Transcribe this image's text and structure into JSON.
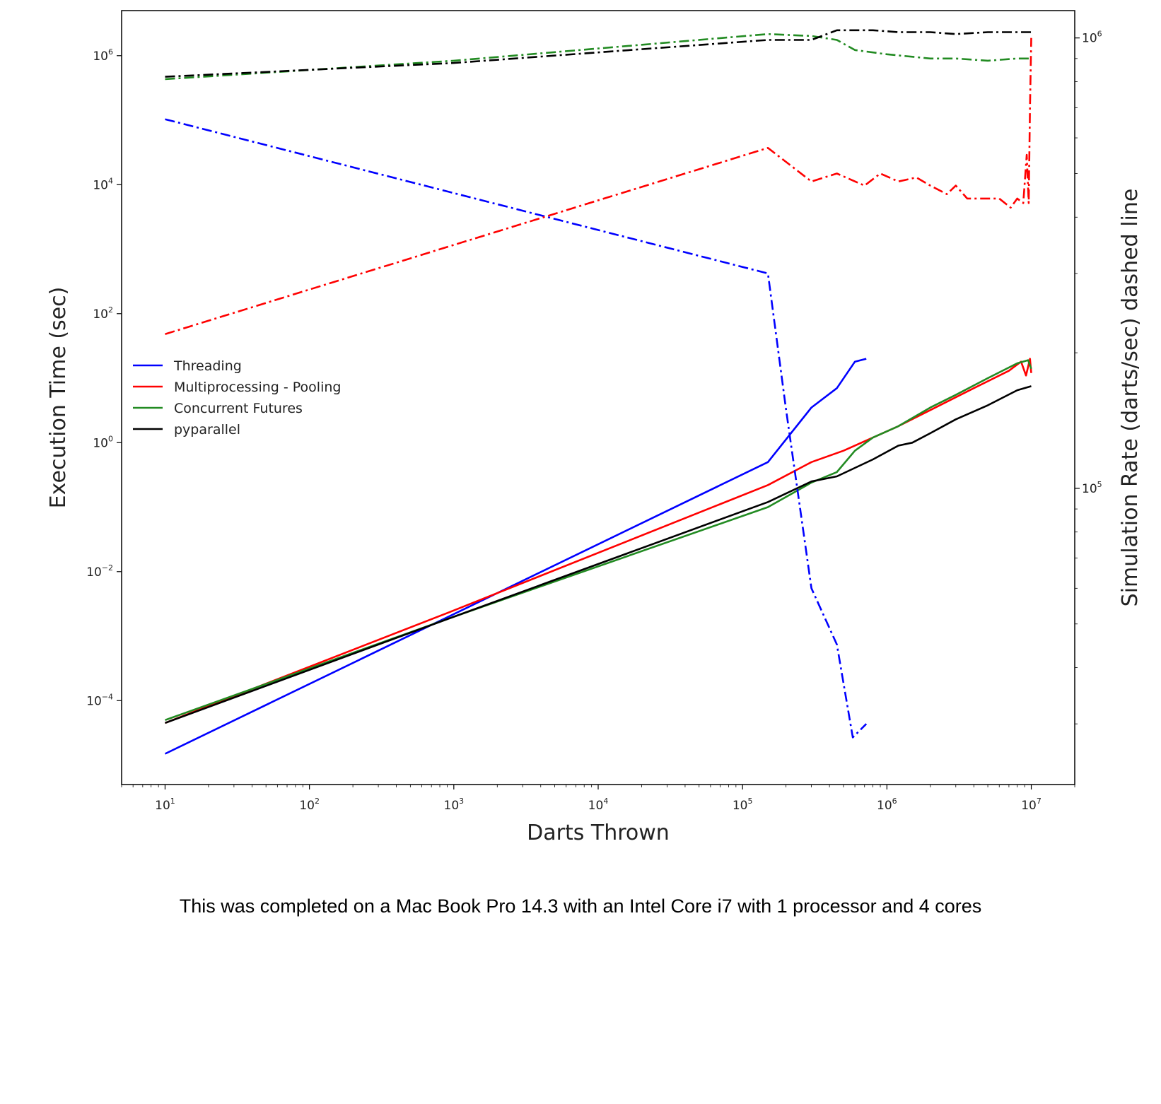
{
  "chart_data": {
    "type": "line",
    "xlabel": "Darts Thrown",
    "ylabel_left": "Execution Time (sec)",
    "ylabel_right": "Simulation Rate (darts/sec) dashed line",
    "x_scale": "log",
    "y_left_scale": "log",
    "y_right_scale": "log",
    "xlim": [
      5,
      20000000
    ],
    "ylim_left": [
      5e-06,
      5000000
    ],
    "ylim_right": [
      22000,
      1150000
    ],
    "x_ticks": [
      {
        "value": 10,
        "base": "10",
        "exp": "1"
      },
      {
        "value": 100,
        "base": "10",
        "exp": "2"
      },
      {
        "value": 1000,
        "base": "10",
        "exp": "3"
      },
      {
        "value": 10000,
        "base": "10",
        "exp": "4"
      },
      {
        "value": 100000,
        "base": "10",
        "exp": "5"
      },
      {
        "value": 1000000,
        "base": "10",
        "exp": "6"
      },
      {
        "value": 10000000,
        "base": "10",
        "exp": "7"
      }
    ],
    "y_left_ticks": [
      {
        "value": 0.0001,
        "base": "10",
        "exp": "−4"
      },
      {
        "value": 0.01,
        "base": "10",
        "exp": "−2"
      },
      {
        "value": 1,
        "base": "10",
        "exp": "0"
      },
      {
        "value": 100,
        "base": "10",
        "exp": "2"
      },
      {
        "value": 10000,
        "base": "10",
        "exp": "4"
      },
      {
        "value": 1000000,
        "base": "10",
        "exp": "6"
      }
    ],
    "y_right_ticks": [
      {
        "value": 100000,
        "base": "10",
        "exp": "5"
      },
      {
        "value": 1000000,
        "base": "10",
        "exp": "6"
      }
    ],
    "legend_position": "center-left",
    "legend": [
      {
        "label": "Threading",
        "color": "#0000ff"
      },
      {
        "label": "Multiprocessing - Pooling",
        "color": "#ff0000"
      },
      {
        "label": "Concurrent Futures",
        "color": "#228b22"
      },
      {
        "label": "pyparallel",
        "color": "#000000"
      }
    ],
    "series": [
      {
        "name": "Threading",
        "axis": "left",
        "style": "solid",
        "color": "#0000ff",
        "x": [
          10,
          150000,
          300000,
          450000,
          600000,
          720000
        ],
        "y": [
          1.5e-05,
          0.5,
          3.5,
          7,
          18,
          20
        ]
      },
      {
        "name": "Multiprocessing - Pooling",
        "axis": "left",
        "style": "solid",
        "color": "#ff0000",
        "x": [
          10,
          1000,
          150000,
          300000,
          500000,
          800000,
          1200000,
          2000000,
          4000000,
          7000000,
          8500000,
          9200000,
          9800000,
          10000000
        ],
        "y": [
          4.5e-05,
          0.0025,
          0.22,
          0.5,
          0.75,
          1.2,
          1.8,
          3.2,
          7,
          13,
          18,
          11,
          20,
          12
        ]
      },
      {
        "name": "Concurrent Futures",
        "axis": "left",
        "style": "solid",
        "color": "#228b22",
        "x": [
          10,
          1000,
          150000,
          300000,
          450000,
          600000,
          800000,
          1200000,
          2000000,
          3000000,
          5000000,
          8000000,
          9500000,
          10000000
        ],
        "y": [
          5e-05,
          0.002,
          0.1,
          0.24,
          0.35,
          0.75,
          1.2,
          1.8,
          3.5,
          5.5,
          10,
          17,
          19,
          14
        ]
      },
      {
        "name": "pyparallel",
        "axis": "left",
        "style": "solid",
        "color": "#000000",
        "x": [
          10,
          1000,
          150000,
          300000,
          450000,
          800000,
          1200000,
          1500000,
          2000000,
          3000000,
          5000000,
          8000000,
          10000000
        ],
        "y": [
          4.5e-05,
          0.002,
          0.12,
          0.25,
          0.3,
          0.55,
          0.9,
          1.0,
          1.4,
          2.3,
          3.8,
          6.5,
          7.5
        ]
      },
      {
        "name": "Threading",
        "axis": "right",
        "style": "dashdot",
        "color": "#0000ff",
        "x": [
          10,
          150000,
          200000,
          300000,
          450000,
          580000,
          720000
        ],
        "y": [
          660000,
          300000,
          150000,
          60000,
          45000,
          28000,
          30000
        ]
      },
      {
        "name": "Multiprocessing - Pooling",
        "axis": "right",
        "style": "dashdot",
        "color": "#ff0000",
        "x": [
          10,
          150000,
          300000,
          450000,
          700000,
          900000,
          1200000,
          1600000,
          2000000,
          2600000,
          3000000,
          3600000,
          4500000,
          6000000,
          7200000,
          8000000,
          8800000,
          9300000,
          9600000,
          9800000,
          10000000
        ],
        "y": [
          220000,
          570000,
          480000,
          500000,
          470000,
          500000,
          480000,
          490000,
          470000,
          450000,
          470000,
          440000,
          440000,
          440000,
          420000,
          440000,
          430000,
          550000,
          430000,
          700000,
          1000000
        ]
      },
      {
        "name": "Concurrent Futures",
        "axis": "right",
        "style": "dashdot",
        "color": "#228b22",
        "x": [
          10,
          1000,
          150000,
          300000,
          450000,
          600000,
          1000000,
          2000000,
          3000000,
          5000000,
          8000000,
          10000000
        ],
        "y": [
          810000,
          890000,
          1020000,
          1010000,
          990000,
          940000,
          920000,
          900000,
          900000,
          890000,
          900000,
          900000
        ]
      },
      {
        "name": "pyparallel",
        "axis": "right",
        "style": "dashdot",
        "color": "#000000",
        "x": [
          10,
          1000,
          150000,
          300000,
          450000,
          800000,
          1200000,
          2000000,
          3000000,
          5000000,
          8000000,
          10000000
        ],
        "y": [
          820000,
          880000,
          990000,
          990000,
          1040000,
          1040000,
          1030000,
          1030000,
          1020000,
          1030000,
          1030000,
          1030000
        ]
      }
    ]
  },
  "caption": "This was completed on a Mac Book Pro 14.3 with an Intel Core i7 with 1 processor and 4 cores"
}
